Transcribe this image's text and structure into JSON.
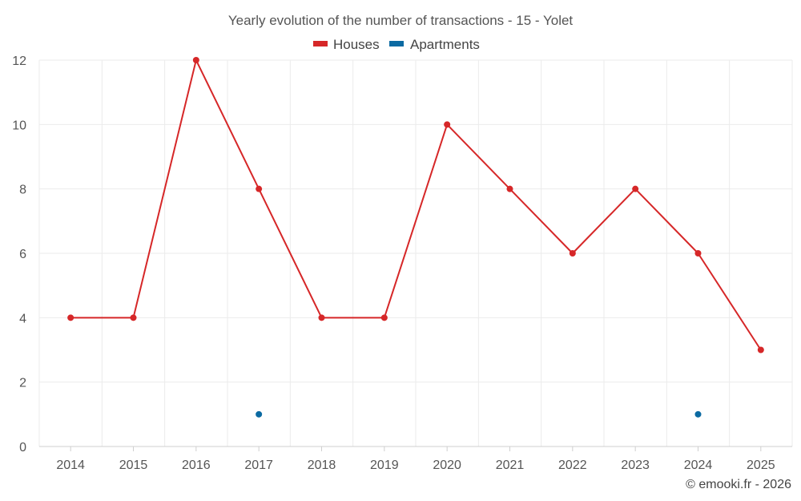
{
  "chart_data": {
    "type": "line",
    "title": "Yearly evolution of the number of transactions - 15 - Yolet",
    "xlabel": "",
    "ylabel": "",
    "categories": [
      "2014",
      "2015",
      "2016",
      "2017",
      "2018",
      "2019",
      "2020",
      "2021",
      "2022",
      "2023",
      "2024",
      "2025"
    ],
    "y_ticks": [
      "0",
      "2",
      "4",
      "6",
      "8",
      "10",
      "12"
    ],
    "ylim": [
      0,
      12
    ],
    "grid": true,
    "legend_position": "top-center",
    "series": [
      {
        "name": "Houses",
        "color": "#d62728",
        "mode": "lines+markers",
        "values": [
          4,
          4,
          12,
          8,
          4,
          4,
          10,
          8,
          6,
          8,
          6,
          3
        ]
      },
      {
        "name": "Apartments",
        "color": "#0b6aa2",
        "mode": "markers",
        "values": [
          null,
          null,
          null,
          1,
          null,
          null,
          null,
          null,
          null,
          null,
          1,
          null
        ]
      }
    ]
  },
  "credit": "© emooki.fr - 2026"
}
